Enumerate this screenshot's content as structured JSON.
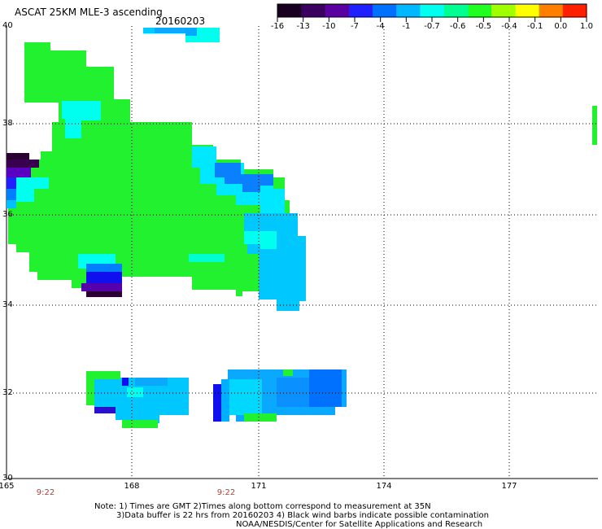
{
  "header": {
    "title": "ASCAT 25KM MLE-3 ascending",
    "date": "20160203"
  },
  "colorbar": {
    "labels": [
      "-16",
      "-13",
      "-10",
      "-7",
      "-4",
      "-1",
      "-0.7",
      "-0.6",
      "-0.5",
      "-0.4",
      "-0.1",
      "0.0",
      "1.0"
    ],
    "colors": [
      "#1a0020",
      "#3a0060",
      "#5a00a0",
      "#2020ff",
      "#0070ff",
      "#00b8ff",
      "#00ffee",
      "#00ff90",
      "#20ff20",
      "#a0ff00",
      "#ffff00",
      "#ff8000",
      "#ff2000"
    ]
  },
  "axes": {
    "lat_labels": [
      "40",
      "38",
      "36",
      "34",
      "32",
      "30"
    ],
    "lon_labels": [
      "165",
      "168",
      "171",
      "174",
      "177"
    ],
    "time_labels": [
      "9:22",
      "9:22"
    ]
  },
  "notes": {
    "line1": "Note: 1) Times are GMT 2)Times along bottom correspond to measurement at 35N",
    "line2": "3)Data buffer is 22 hrs from 20160203 4) Black wind barbs indicate possible contamination",
    "line3": "NOAA/NESDIS/Center for Satellite Applications and Research"
  }
}
